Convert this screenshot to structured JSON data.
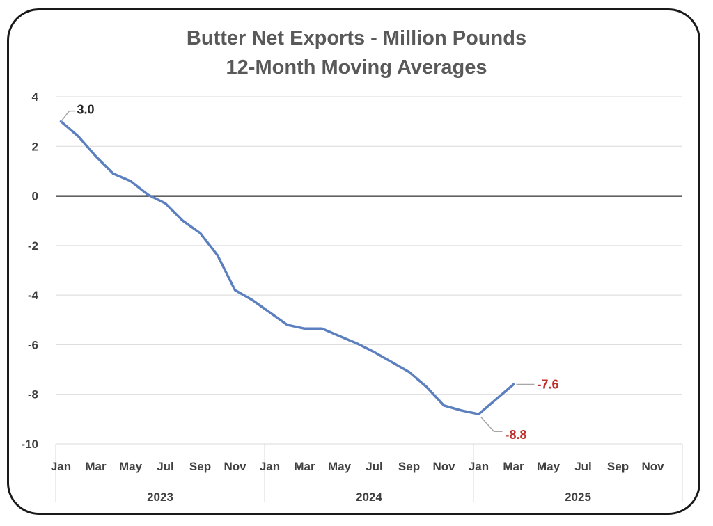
{
  "chart_data": {
    "type": "line",
    "title": "Butter Net Exports - Million Pounds",
    "subtitle": "12-Month Moving Averages",
    "xlabel": "",
    "ylabel": "",
    "ylim": [
      -10,
      4
    ],
    "yticks": [
      4,
      2,
      0,
      -2,
      -4,
      -6,
      -8,
      -10
    ],
    "grid": true,
    "legend": "none",
    "month_tick_labels": [
      "Jan",
      "Mar",
      "May",
      "Jul",
      "Sep",
      "Nov",
      "Jan",
      "Mar",
      "May",
      "Jul",
      "Sep",
      "Nov",
      "Jan",
      "Mar",
      "May",
      "Jul",
      "Sep",
      "Nov"
    ],
    "years": [
      "2023",
      "2024",
      "2025"
    ],
    "x": [
      "Jan 2023",
      "Feb 2023",
      "Mar 2023",
      "Apr 2023",
      "May 2023",
      "Jun 2023",
      "Jul 2023",
      "Aug 2023",
      "Sep 2023",
      "Oct 2023",
      "Nov 2023",
      "Dec 2023",
      "Jan 2024",
      "Feb 2024",
      "Mar 2024",
      "Apr 2024",
      "May 2024",
      "Jun 2024",
      "Jul 2024",
      "Aug 2024",
      "Sep 2024",
      "Oct 2024",
      "Nov 2024",
      "Dec 2024",
      "Jan 2025",
      "Feb 2025",
      "Mar 2025"
    ],
    "series": [
      {
        "values": [
          3.0,
          2.4,
          1.6,
          0.9,
          0.6,
          0.05,
          -0.3,
          -1.0,
          -1.5,
          -2.4,
          -3.8,
          -4.2,
          -4.7,
          -5.2,
          -5.35,
          -5.35,
          -5.65,
          -5.95,
          -6.3,
          -6.7,
          -7.1,
          -7.7,
          -8.45,
          -8.65,
          -8.8,
          -8.2,
          -7.6
        ],
        "color": "#5b7fbf"
      }
    ],
    "data_labels": [
      {
        "index": 0,
        "text": "3.0",
        "color": "#262626"
      },
      {
        "index": 24,
        "text": "-8.8",
        "color": "#c0302b"
      },
      {
        "index": 26,
        "text": "-7.6",
        "color": "#c0302b"
      }
    ],
    "colors": {
      "line": "#5b7fbf",
      "zero_line": "#000000",
      "grid": "#d9d9d9",
      "highlight_label": "#c0302b",
      "leader": "#a6a6a6"
    }
  }
}
